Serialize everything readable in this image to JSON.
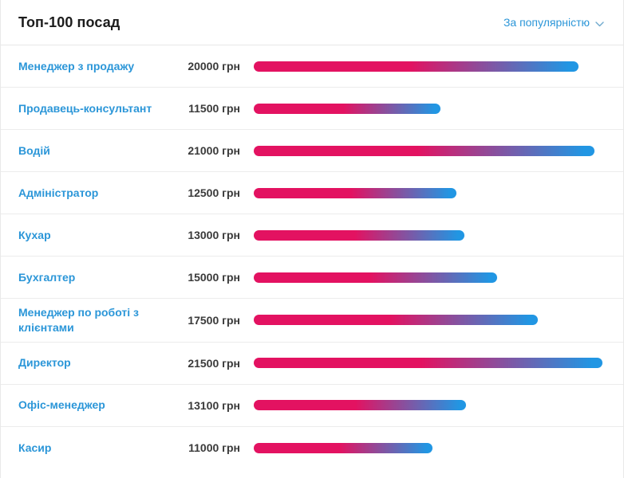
{
  "header": {
    "title": "Топ-100 посад",
    "sort_label": "За популярністю"
  },
  "colors": {
    "link_blue": "#2b96d8",
    "bar_gradient_start": "#e31261",
    "bar_gradient_end": "#2196e3",
    "value_text": "#3a3a3a",
    "separator": "#ececec"
  },
  "chart_data": {
    "type": "bar",
    "orientation": "horizontal",
    "title": "Топ-100 посад",
    "sort_order": "За популярністю",
    "categories": [
      "Менеджер з продажу",
      "Продавець-консультант",
      "Водій",
      "Адміністратор",
      "Кухар",
      "Бухгалтер",
      "Менеджер по роботі з клієнтами",
      "Директор",
      "Офіс-менеджер",
      "Касир"
    ],
    "values": [
      20000,
      11500,
      21000,
      12500,
      13000,
      15000,
      17500,
      21500,
      13100,
      11000
    ],
    "value_labels": [
      "20000 грн",
      "11500 грн",
      "21000 грн",
      "12500 грн",
      "13000 грн",
      "15000 грн",
      "17500 грн",
      "21500 грн",
      "13100 грн",
      "11000 грн"
    ],
    "xlabel": "",
    "ylabel": "",
    "xlim": [
      0,
      21500
    ],
    "unit": "грн",
    "grid": false,
    "legend": false
  }
}
